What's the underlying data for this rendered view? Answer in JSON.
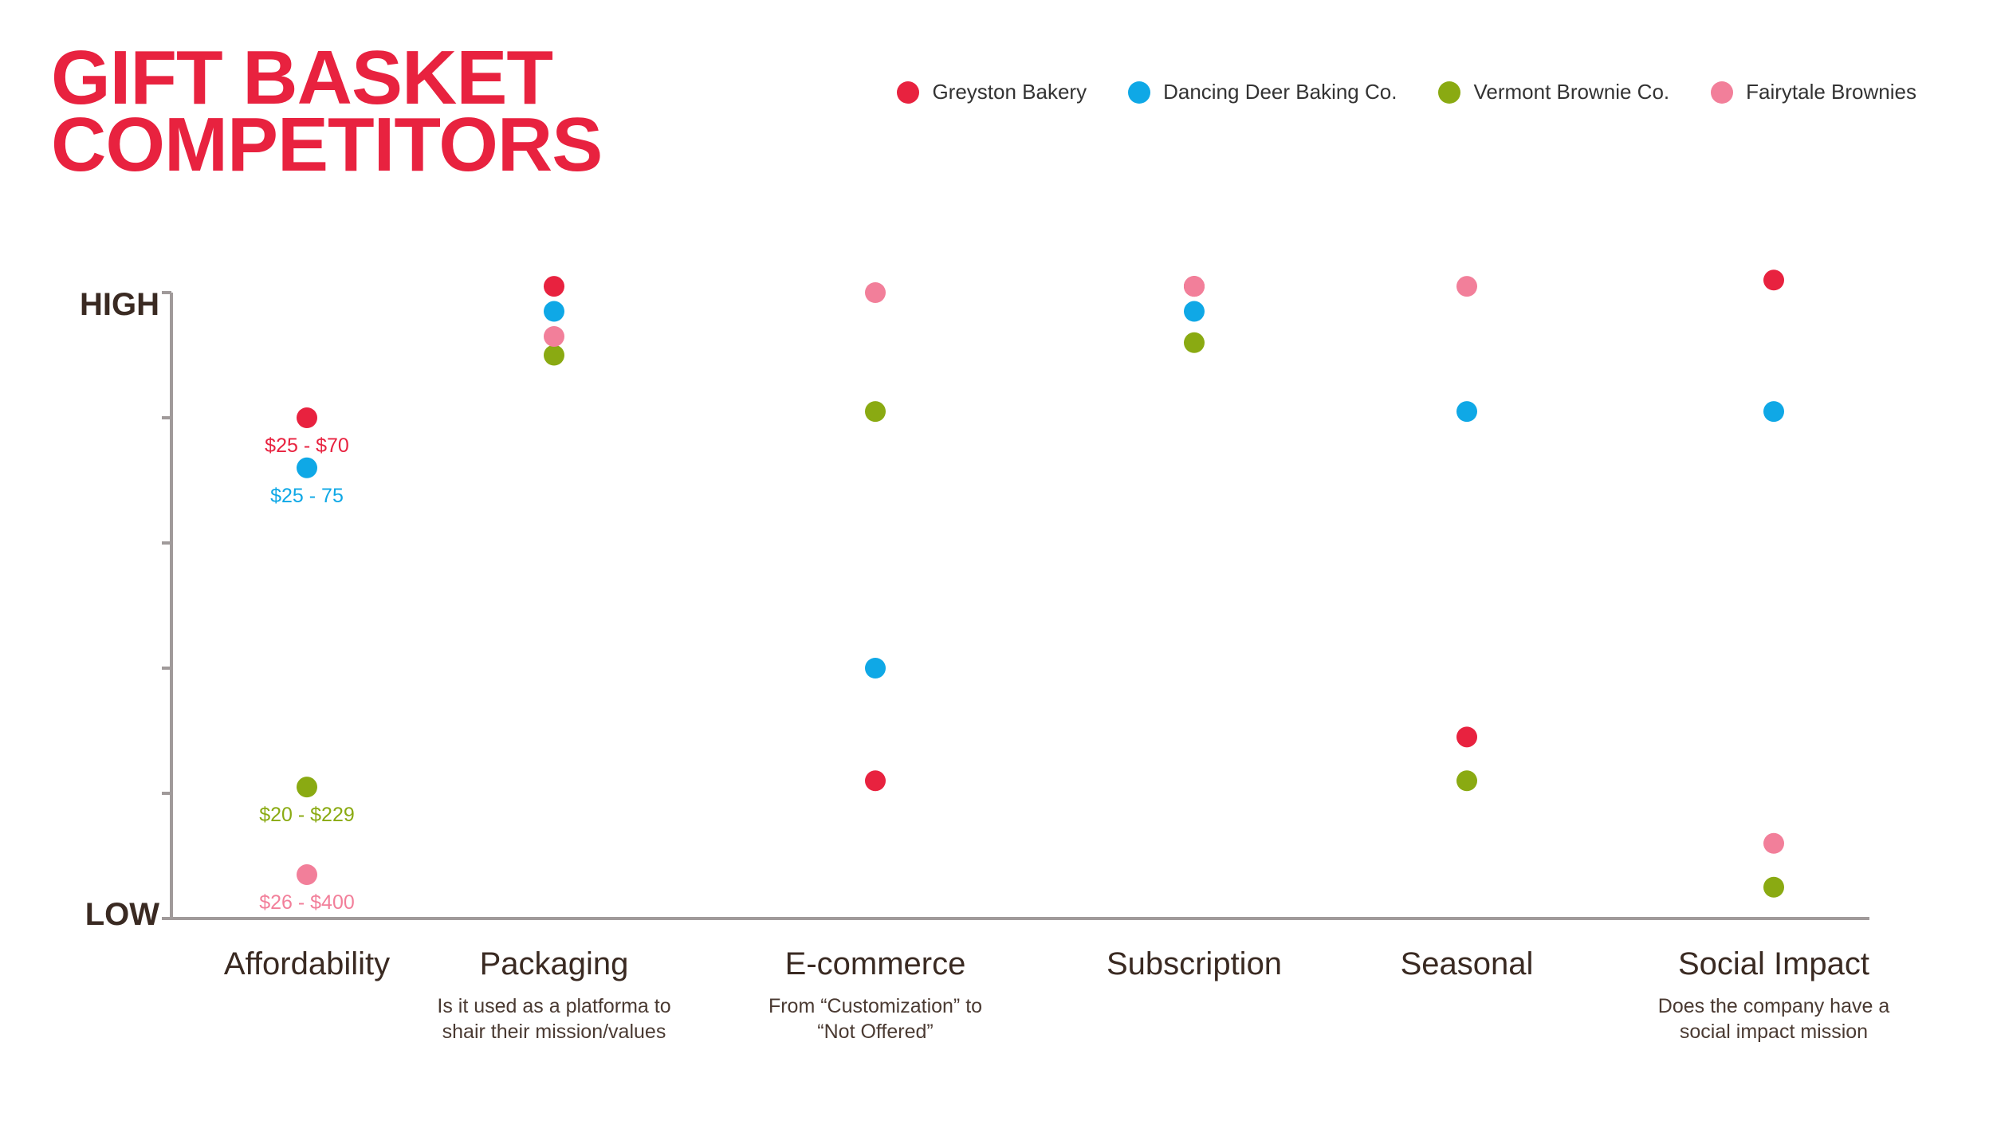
{
  "title": {
    "line1": "GIFT BASKET",
    "line2": "COMPETITORS"
  },
  "colors": {
    "title": "#e8223f",
    "axis": "#a09a9a",
    "text": "#3a2a22",
    "greyston": "#e8223f",
    "dancing_deer": "#0fa8e6",
    "vermont": "#8aaa12",
    "fairytale": "#f27f9a"
  },
  "chart_data": {
    "type": "scatter",
    "title": "GIFT BASKET COMPETITORS",
    "y_axis": {
      "high_label": "HIGH",
      "low_label": "LOW",
      "ylim": [
        0,
        100
      ],
      "ticks": [
        0,
        20,
        40,
        60,
        80,
        100
      ]
    },
    "legend_position": "top-right",
    "grid": false,
    "categories": [
      {
        "name": "Affordability",
        "subtitle": []
      },
      {
        "name": "Packaging",
        "subtitle": [
          "Is it used as a platforma to",
          "shair their mission/values"
        ]
      },
      {
        "name": "E-commerce",
        "subtitle": [
          "From “Customization” to",
          "“Not Offered”"
        ]
      },
      {
        "name": "Subscription",
        "subtitle": []
      },
      {
        "name": "Seasonal",
        "subtitle": []
      },
      {
        "name": "Social Impact",
        "subtitle": [
          "Does the company have a",
          "social impact mission"
        ]
      }
    ],
    "series": [
      {
        "name": "Greyston Bakery",
        "color_key": "greyston",
        "values": [
          80,
          101,
          22,
          101,
          29,
          102
        ],
        "labels": [
          "$25 - $70",
          null,
          null,
          null,
          null,
          null
        ]
      },
      {
        "name": "Dancing Deer Baking Co.",
        "color_key": "dancing_deer",
        "values": [
          72,
          97,
          40,
          97,
          81,
          81
        ],
        "labels": [
          "$25 - 75",
          null,
          null,
          null,
          null,
          null
        ]
      },
      {
        "name": "Vermont Brownie Co.",
        "color_key": "vermont",
        "values": [
          21,
          90,
          81,
          92,
          22,
          5
        ],
        "labels": [
          "$20 - $229",
          null,
          null,
          null,
          null,
          null
        ]
      },
      {
        "name": "Fairytale Brownies",
        "color_key": "fairytale",
        "values": [
          7,
          93,
          100,
          101,
          101,
          12
        ],
        "labels": [
          "$26 - $400",
          null,
          null,
          null,
          null,
          null
        ]
      }
    ]
  }
}
